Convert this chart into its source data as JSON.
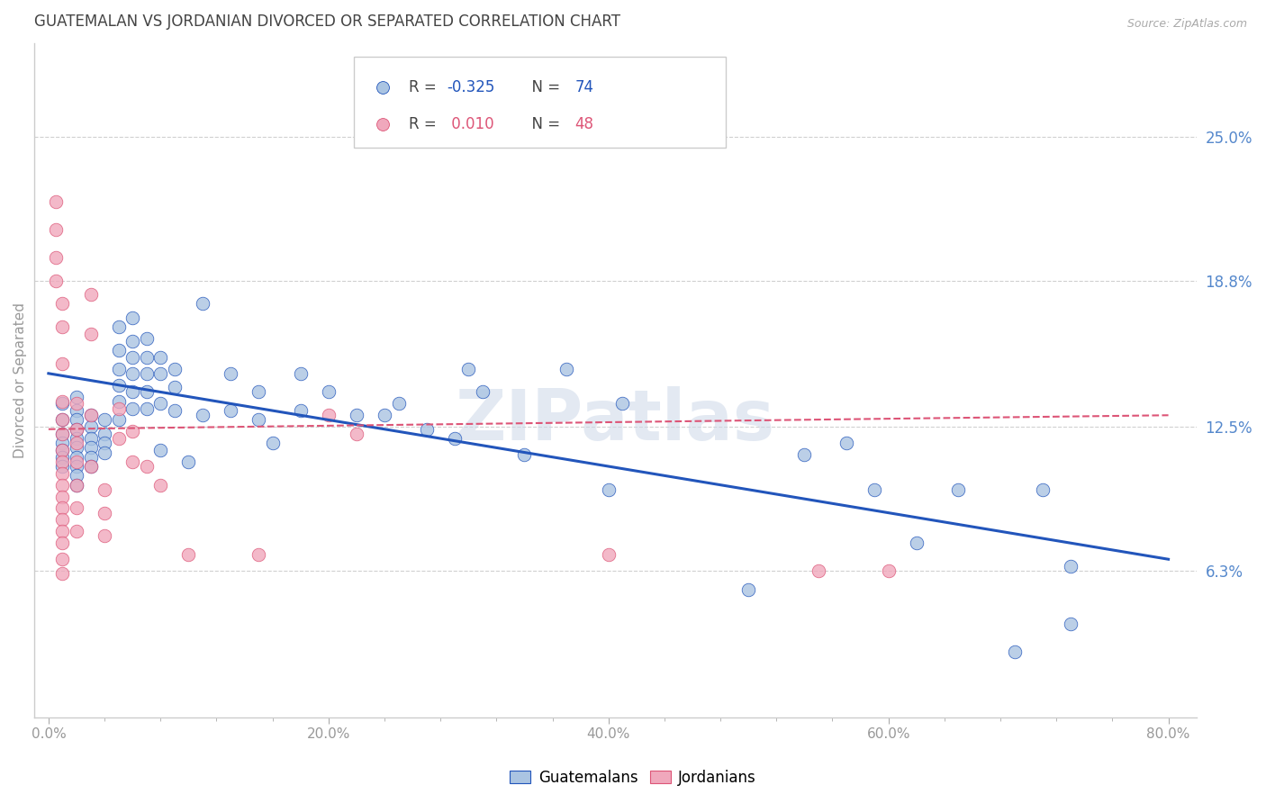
{
  "title": "GUATEMALAN VS JORDANIAN DIVORCED OR SEPARATED CORRELATION CHART",
  "source": "Source: ZipAtlas.com",
  "ylabel": "Divorced or Separated",
  "xlabel_ticks": [
    "0.0%",
    "",
    "",
    "",
    "",
    "20.0%",
    "",
    "",
    "",
    "",
    "40.0%",
    "",
    "",
    "",
    "",
    "60.0%",
    "",
    "",
    "",
    "",
    "80.0%"
  ],
  "xlabel_vals": [
    0.0,
    0.04,
    0.08,
    0.12,
    0.16,
    0.2,
    0.24,
    0.28,
    0.32,
    0.36,
    0.4,
    0.44,
    0.48,
    0.52,
    0.56,
    0.6,
    0.64,
    0.68,
    0.72,
    0.76,
    0.8
  ],
  "xlabel_major": [
    0.0,
    0.2,
    0.4,
    0.6,
    0.8
  ],
  "xlabel_major_labels": [
    "0.0%",
    "20.0%",
    "40.0%",
    "60.0%",
    "80.0%"
  ],
  "ylabel_ticks_right": [
    "25.0%",
    "18.8%",
    "12.5%",
    "6.3%"
  ],
  "ylabel_vals_right": [
    0.25,
    0.188,
    0.125,
    0.063
  ],
  "xlim": [
    -0.01,
    0.82
  ],
  "ylim": [
    0.0,
    0.29
  ],
  "legend_blue_label": "Guatemalans",
  "legend_pink_label": "Jordanians",
  "blue_color": "#aac4e2",
  "pink_color": "#f0a8bc",
  "trendline_blue": "#2255bb",
  "trendline_pink": "#dd5577",
  "watermark": "ZIPatlas",
  "blue_scatter": [
    [
      0.01,
      0.135
    ],
    [
      0.01,
      0.128
    ],
    [
      0.01,
      0.122
    ],
    [
      0.01,
      0.118
    ],
    [
      0.01,
      0.115
    ],
    [
      0.01,
      0.112
    ],
    [
      0.01,
      0.108
    ],
    [
      0.02,
      0.138
    ],
    [
      0.02,
      0.132
    ],
    [
      0.02,
      0.128
    ],
    [
      0.02,
      0.124
    ],
    [
      0.02,
      0.12
    ],
    [
      0.02,
      0.116
    ],
    [
      0.02,
      0.112
    ],
    [
      0.02,
      0.108
    ],
    [
      0.02,
      0.104
    ],
    [
      0.02,
      0.1
    ],
    [
      0.03,
      0.13
    ],
    [
      0.03,
      0.125
    ],
    [
      0.03,
      0.12
    ],
    [
      0.03,
      0.116
    ],
    [
      0.03,
      0.112
    ],
    [
      0.03,
      0.108
    ],
    [
      0.04,
      0.128
    ],
    [
      0.04,
      0.122
    ],
    [
      0.04,
      0.118
    ],
    [
      0.04,
      0.114
    ],
    [
      0.05,
      0.168
    ],
    [
      0.05,
      0.158
    ],
    [
      0.05,
      0.15
    ],
    [
      0.05,
      0.143
    ],
    [
      0.05,
      0.136
    ],
    [
      0.05,
      0.128
    ],
    [
      0.06,
      0.172
    ],
    [
      0.06,
      0.162
    ],
    [
      0.06,
      0.155
    ],
    [
      0.06,
      0.148
    ],
    [
      0.06,
      0.14
    ],
    [
      0.06,
      0.133
    ],
    [
      0.07,
      0.163
    ],
    [
      0.07,
      0.155
    ],
    [
      0.07,
      0.148
    ],
    [
      0.07,
      0.14
    ],
    [
      0.07,
      0.133
    ],
    [
      0.08,
      0.155
    ],
    [
      0.08,
      0.148
    ],
    [
      0.08,
      0.135
    ],
    [
      0.08,
      0.115
    ],
    [
      0.09,
      0.15
    ],
    [
      0.09,
      0.142
    ],
    [
      0.09,
      0.132
    ],
    [
      0.1,
      0.11
    ],
    [
      0.11,
      0.178
    ],
    [
      0.11,
      0.13
    ],
    [
      0.13,
      0.148
    ],
    [
      0.13,
      0.132
    ],
    [
      0.15,
      0.14
    ],
    [
      0.15,
      0.128
    ],
    [
      0.16,
      0.118
    ],
    [
      0.18,
      0.148
    ],
    [
      0.18,
      0.132
    ],
    [
      0.2,
      0.14
    ],
    [
      0.22,
      0.13
    ],
    [
      0.24,
      0.13
    ],
    [
      0.25,
      0.135
    ],
    [
      0.27,
      0.124
    ],
    [
      0.29,
      0.12
    ],
    [
      0.3,
      0.15
    ],
    [
      0.31,
      0.14
    ],
    [
      0.34,
      0.113
    ],
    [
      0.37,
      0.15
    ],
    [
      0.4,
      0.098
    ],
    [
      0.41,
      0.135
    ],
    [
      0.5,
      0.055
    ],
    [
      0.54,
      0.113
    ],
    [
      0.57,
      0.118
    ],
    [
      0.59,
      0.098
    ],
    [
      0.62,
      0.075
    ],
    [
      0.65,
      0.098
    ],
    [
      0.69,
      0.028
    ],
    [
      0.71,
      0.098
    ],
    [
      0.73,
      0.065
    ],
    [
      0.73,
      0.04
    ]
  ],
  "pink_scatter": [
    [
      0.005,
      0.222
    ],
    [
      0.005,
      0.21
    ],
    [
      0.005,
      0.198
    ],
    [
      0.005,
      0.188
    ],
    [
      0.01,
      0.178
    ],
    [
      0.01,
      0.168
    ],
    [
      0.01,
      0.152
    ],
    [
      0.01,
      0.136
    ],
    [
      0.01,
      0.128
    ],
    [
      0.01,
      0.122
    ],
    [
      0.01,
      0.115
    ],
    [
      0.01,
      0.11
    ],
    [
      0.01,
      0.105
    ],
    [
      0.01,
      0.1
    ],
    [
      0.01,
      0.095
    ],
    [
      0.01,
      0.09
    ],
    [
      0.01,
      0.085
    ],
    [
      0.01,
      0.08
    ],
    [
      0.01,
      0.075
    ],
    [
      0.01,
      0.068
    ],
    [
      0.01,
      0.062
    ],
    [
      0.02,
      0.135
    ],
    [
      0.02,
      0.124
    ],
    [
      0.02,
      0.118
    ],
    [
      0.02,
      0.11
    ],
    [
      0.02,
      0.1
    ],
    [
      0.02,
      0.09
    ],
    [
      0.02,
      0.08
    ],
    [
      0.03,
      0.182
    ],
    [
      0.03,
      0.165
    ],
    [
      0.03,
      0.13
    ],
    [
      0.03,
      0.108
    ],
    [
      0.04,
      0.098
    ],
    [
      0.04,
      0.088
    ],
    [
      0.04,
      0.078
    ],
    [
      0.05,
      0.133
    ],
    [
      0.05,
      0.12
    ],
    [
      0.06,
      0.123
    ],
    [
      0.06,
      0.11
    ],
    [
      0.07,
      0.108
    ],
    [
      0.08,
      0.1
    ],
    [
      0.1,
      0.07
    ],
    [
      0.15,
      0.07
    ],
    [
      0.2,
      0.13
    ],
    [
      0.22,
      0.122
    ],
    [
      0.4,
      0.07
    ],
    [
      0.55,
      0.063
    ],
    [
      0.6,
      0.063
    ]
  ],
  "blue_trend_x": [
    0.0,
    0.8
  ],
  "blue_trend_y": [
    0.148,
    0.068
  ],
  "pink_trend_x": [
    0.0,
    0.8
  ],
  "pink_trend_y": [
    0.124,
    0.13
  ],
  "grid_color": "#d0d0d0",
  "background_color": "#ffffff",
  "title_color": "#444444",
  "right_label_color": "#5588cc"
}
